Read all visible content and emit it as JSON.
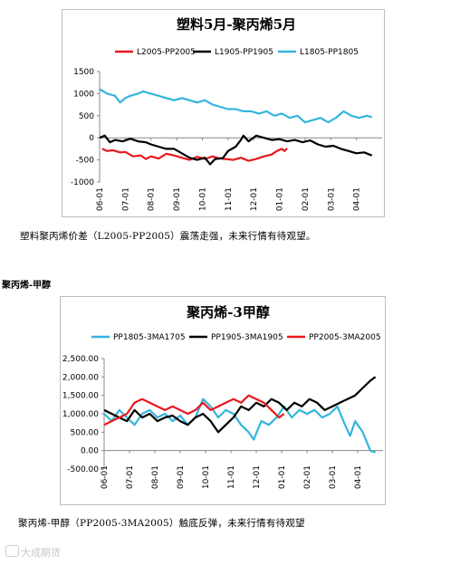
{
  "chart_data": [
    {
      "type": "line",
      "title": "塑料5月-聚丙烯5月",
      "ylim": [
        -1000,
        1500
      ],
      "y_ticks": [
        "1500",
        "1000",
        "500",
        "0",
        "-500",
        "-1000"
      ],
      "x_ticks": [
        "06-01",
        "07-01",
        "08-01",
        "09-01",
        "10-01",
        "11-01",
        "12-01",
        "01-01",
        "02-01",
        "03-01",
        "04-01"
      ],
      "legend_placement": "top",
      "grid": false,
      "series": [
        {
          "name": "L2005-PP2005",
          "color": "#e8191d",
          "points": [
            [
              0.1,
              -250
            ],
            [
              0.3,
              -300
            ],
            [
              0.5,
              -280
            ],
            [
              0.8,
              -330
            ],
            [
              1.0,
              -320
            ],
            [
              1.3,
              -420
            ],
            [
              1.6,
              -400
            ],
            [
              1.8,
              -480
            ],
            [
              2.0,
              -420
            ],
            [
              2.3,
              -470
            ],
            [
              2.6,
              -360
            ],
            [
              2.9,
              -400
            ],
            [
              3.2,
              -450
            ],
            [
              3.5,
              -500
            ],
            [
              3.8,
              -430
            ],
            [
              4.1,
              -480
            ],
            [
              4.4,
              -420
            ],
            [
              4.6,
              -460
            ],
            [
              4.9,
              -480
            ],
            [
              5.2,
              -500
            ],
            [
              5.5,
              -450
            ],
            [
              5.8,
              -520
            ],
            [
              6.1,
              -480
            ],
            [
              6.4,
              -420
            ],
            [
              6.7,
              -380
            ],
            [
              6.9,
              -300
            ],
            [
              7.1,
              -250
            ],
            [
              7.2,
              -300
            ],
            [
              7.3,
              -240
            ]
          ]
        },
        {
          "name": "L1905-PP1905",
          "color": "#000000",
          "points": [
            [
              0.0,
              0
            ],
            [
              0.2,
              50
            ],
            [
              0.4,
              -100
            ],
            [
              0.6,
              -50
            ],
            [
              0.9,
              -80
            ],
            [
              1.2,
              -20
            ],
            [
              1.5,
              -80
            ],
            [
              1.8,
              -100
            ],
            [
              2.0,
              -150
            ],
            [
              2.3,
              -200
            ],
            [
              2.6,
              -250
            ],
            [
              2.9,
              -250
            ],
            [
              3.2,
              -350
            ],
            [
              3.5,
              -450
            ],
            [
              3.8,
              -500
            ],
            [
              4.1,
              -450
            ],
            [
              4.3,
              -600
            ],
            [
              4.5,
              -480
            ],
            [
              4.8,
              -460
            ],
            [
              5.0,
              -300
            ],
            [
              5.3,
              -200
            ],
            [
              5.5,
              -50
            ],
            [
              5.6,
              50
            ],
            [
              5.8,
              -80
            ],
            [
              6.1,
              50
            ],
            [
              6.4,
              0
            ],
            [
              6.7,
              -50
            ],
            [
              7.0,
              -30
            ],
            [
              7.3,
              -80
            ],
            [
              7.6,
              -50
            ],
            [
              7.9,
              -100
            ],
            [
              8.2,
              -60
            ],
            [
              8.5,
              -150
            ],
            [
              8.8,
              -200
            ],
            [
              9.1,
              -180
            ],
            [
              9.4,
              -250
            ],
            [
              9.7,
              -300
            ],
            [
              10.0,
              -350
            ],
            [
              10.3,
              -330
            ],
            [
              10.6,
              -400
            ]
          ]
        },
        {
          "name": "L1805-PP1805",
          "color": "#33b5dd",
          "points": [
            [
              0.0,
              1100
            ],
            [
              0.3,
              1000
            ],
            [
              0.6,
              950
            ],
            [
              0.8,
              800
            ],
            [
              1.0,
              900
            ],
            [
              1.2,
              950
            ],
            [
              1.5,
              1000
            ],
            [
              1.7,
              1050
            ],
            [
              2.0,
              1000
            ],
            [
              2.3,
              950
            ],
            [
              2.6,
              900
            ],
            [
              2.9,
              850
            ],
            [
              3.2,
              900
            ],
            [
              3.5,
              850
            ],
            [
              3.8,
              800
            ],
            [
              4.1,
              850
            ],
            [
              4.4,
              750
            ],
            [
              4.7,
              700
            ],
            [
              5.0,
              650
            ],
            [
              5.3,
              650
            ],
            [
              5.6,
              600
            ],
            [
              5.9,
              600
            ],
            [
              6.2,
              550
            ],
            [
              6.5,
              600
            ],
            [
              6.8,
              500
            ],
            [
              7.1,
              550
            ],
            [
              7.4,
              450
            ],
            [
              7.7,
              500
            ],
            [
              8.0,
              350
            ],
            [
              8.3,
              400
            ],
            [
              8.6,
              450
            ],
            [
              8.9,
              350
            ],
            [
              9.2,
              450
            ],
            [
              9.5,
              600
            ],
            [
              9.8,
              500
            ],
            [
              10.1,
              450
            ],
            [
              10.4,
              500
            ],
            [
              10.6,
              470
            ]
          ]
        }
      ]
    },
    {
      "type": "line",
      "title": "聚丙烯-3甲醇",
      "ylim": [
        -500,
        2500
      ],
      "y_ticks": [
        "2,500.00",
        "2,000.00",
        "1,500.00",
        "1,000.00",
        "500.00",
        "0.00",
        "-500.00"
      ],
      "x_ticks": [
        "06-01",
        "07-01",
        "08-01",
        "09-01",
        "10-01",
        "11-01",
        "12-01",
        "01-01",
        "02-01",
        "03-01",
        "04-01"
      ],
      "legend_placement": "top",
      "grid": false,
      "series": [
        {
          "name": "PP1805-3MA1705",
          "color": "#33b5dd",
          "points": [
            [
              0.0,
              1000
            ],
            [
              0.3,
              800
            ],
            [
              0.6,
              1100
            ],
            [
              0.9,
              900
            ],
            [
              1.2,
              700
            ],
            [
              1.5,
              1000
            ],
            [
              1.8,
              1100
            ],
            [
              2.1,
              900
            ],
            [
              2.4,
              1000
            ],
            [
              2.7,
              800
            ],
            [
              3.0,
              950
            ],
            [
              3.3,
              700
            ],
            [
              3.6,
              900
            ],
            [
              3.9,
              1400
            ],
            [
              4.2,
              1200
            ],
            [
              4.5,
              900
            ],
            [
              4.8,
              1100
            ],
            [
              5.1,
              1000
            ],
            [
              5.4,
              700
            ],
            [
              5.7,
              500
            ],
            [
              5.9,
              300
            ],
            [
              6.2,
              800
            ],
            [
              6.5,
              700
            ],
            [
              6.8,
              900
            ],
            [
              7.1,
              1200
            ],
            [
              7.4,
              900
            ],
            [
              7.7,
              1100
            ],
            [
              8.0,
              1000
            ],
            [
              8.3,
              1100
            ],
            [
              8.6,
              900
            ],
            [
              8.9,
              1000
            ],
            [
              9.2,
              1200
            ],
            [
              9.5,
              700
            ],
            [
              9.7,
              400
            ],
            [
              9.9,
              800
            ],
            [
              10.2,
              500
            ],
            [
              10.5,
              0
            ],
            [
              10.7,
              -50
            ]
          ]
        },
        {
          "name": "PP1905-3MA1905",
          "color": "#000000",
          "points": [
            [
              0.0,
              1100
            ],
            [
              0.3,
              1000
            ],
            [
              0.6,
              900
            ],
            [
              0.9,
              800
            ],
            [
              1.2,
              1100
            ],
            [
              1.5,
              900
            ],
            [
              1.8,
              1000
            ],
            [
              2.1,
              800
            ],
            [
              2.4,
              900
            ],
            [
              2.7,
              950
            ],
            [
              3.0,
              800
            ],
            [
              3.3,
              700
            ],
            [
              3.6,
              900
            ],
            [
              3.9,
              1000
            ],
            [
              4.2,
              800
            ],
            [
              4.5,
              500
            ],
            [
              4.8,
              700
            ],
            [
              5.1,
              900
            ],
            [
              5.4,
              1200
            ],
            [
              5.7,
              1100
            ],
            [
              6.0,
              1300
            ],
            [
              6.3,
              1200
            ],
            [
              6.6,
              1400
            ],
            [
              6.9,
              1300
            ],
            [
              7.2,
              1100
            ],
            [
              7.5,
              1300
            ],
            [
              7.8,
              1200
            ],
            [
              8.1,
              1400
            ],
            [
              8.4,
              1300
            ],
            [
              8.7,
              1100
            ],
            [
              9.0,
              1200
            ],
            [
              9.3,
              1300
            ],
            [
              9.6,
              1400
            ],
            [
              9.9,
              1500
            ],
            [
              10.2,
              1700
            ],
            [
              10.5,
              1900
            ],
            [
              10.7,
              2000
            ]
          ]
        },
        {
          "name": "PP2005-3MA2005",
          "color": "#e8191d",
          "points": [
            [
              0.0,
              700
            ],
            [
              0.3,
              800
            ],
            [
              0.6,
              900
            ],
            [
              0.9,
              1000
            ],
            [
              1.2,
              1300
            ],
            [
              1.5,
              1400
            ],
            [
              1.8,
              1300
            ],
            [
              2.1,
              1200
            ],
            [
              2.4,
              1100
            ],
            [
              2.7,
              1200
            ],
            [
              3.0,
              1100
            ],
            [
              3.3,
              1000
            ],
            [
              3.6,
              1100
            ],
            [
              3.9,
              1300
            ],
            [
              4.2,
              1100
            ],
            [
              4.5,
              1200
            ],
            [
              4.8,
              1300
            ],
            [
              5.1,
              1400
            ],
            [
              5.4,
              1300
            ],
            [
              5.7,
              1500
            ],
            [
              6.0,
              1400
            ],
            [
              6.3,
              1300
            ],
            [
              6.6,
              1100
            ],
            [
              6.9,
              900
            ],
            [
              7.1,
              1000
            ]
          ]
        }
      ]
    }
  ],
  "section_heading": "聚丙烯-甲醇",
  "caption_1": "塑料聚丙烯价差（L2005-PP2005）震荡走强，未来行情有待观望。",
  "caption_2": "聚丙烯-甲醇（PP2005-3MA2005）触底反弹，未来行情有待观望",
  "watermark": "大成期货"
}
